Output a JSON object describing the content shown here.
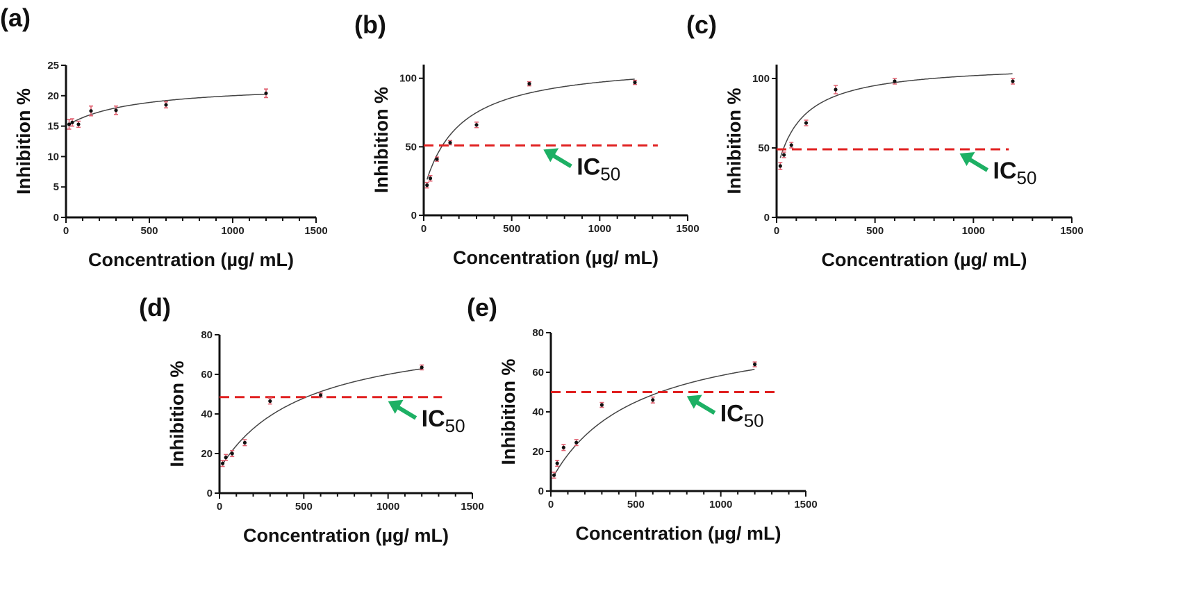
{
  "chart_data": [
    {
      "panel": "(a)",
      "type": "scatter",
      "xlabel": "Concentration (µg/ mL)",
      "ylabel": "Inhibition %",
      "xlim": [
        0,
        1500
      ],
      "ylim": [
        0,
        25
      ],
      "xticks": [
        0,
        500,
        1000,
        1500
      ],
      "yticks": [
        0,
        5,
        10,
        15,
        20,
        25
      ],
      "x": [
        18.75,
        37.5,
        75,
        150,
        300,
        600,
        1200
      ],
      "y": [
        15.3,
        15.6,
        15.3,
        17.5,
        17.6,
        18.5,
        20.4
      ],
      "err": [
        0.8,
        0.6,
        0.5,
        0.8,
        0.7,
        0.5,
        0.7
      ],
      "fit": {
        "y0": 15,
        "bmax": 7,
        "k": 400
      },
      "ic50": null
    },
    {
      "panel": "(b)",
      "type": "scatter",
      "xlabel": "Concentration (µg/ mL)",
      "ylabel": "Inhibition %",
      "xlim": [
        0,
        1500
      ],
      "ylim": [
        0,
        110
      ],
      "xticks": [
        0,
        500,
        1000,
        1500
      ],
      "yticks": [
        0,
        50,
        100
      ],
      "x": [
        18.75,
        37.5,
        75,
        150,
        300,
        600,
        1200
      ],
      "y": [
        22,
        27,
        41,
        53,
        66,
        96,
        97
      ],
      "err": [
        2,
        2,
        1.5,
        1.5,
        2,
        1.5,
        1.5
      ],
      "fit": {
        "y0": 18,
        "bmax": 95,
        "k": 200
      },
      "ic50": {
        "y": 51,
        "xend": 1330,
        "label": "IC",
        "sub": "50",
        "arrow_x": 680
      }
    },
    {
      "panel": "(c)",
      "type": "scatter",
      "xlabel": "Concentration (µg/ mL)",
      "ylabel": "Inhibition %",
      "xlim": [
        0,
        1500
      ],
      "ylim": [
        0,
        110
      ],
      "xticks": [
        0,
        500,
        1000,
        1500
      ],
      "yticks": [
        0,
        50,
        100
      ],
      "x": [
        18.75,
        37.5,
        75,
        150,
        300,
        600,
        1200
      ],
      "y": [
        37,
        45,
        52,
        68,
        92,
        98,
        98
      ],
      "err": [
        2.5,
        2,
        2,
        2,
        3,
        2,
        2
      ],
      "fit": {
        "y0": 33,
        "bmax": 78,
        "k": 130
      },
      "ic50": {
        "y": 49,
        "xend": 1180,
        "label": "IC",
        "sub": "50",
        "arrow_x": 930
      }
    },
    {
      "panel": "(d)",
      "type": "scatter",
      "xlabel": "Concentration (µg/ mL)",
      "ylabel": "Inhibition %",
      "xlim": [
        0,
        1500
      ],
      "ylim": [
        0,
        80
      ],
      "xticks": [
        0,
        500,
        1000,
        1500
      ],
      "yticks": [
        0,
        20,
        40,
        60,
        80
      ],
      "x": [
        18.75,
        37.5,
        75,
        150,
        300,
        600,
        1200
      ],
      "y": [
        15,
        18,
        20,
        25.5,
        46.5,
        49.5,
        63.5
      ],
      "err": [
        1.5,
        1.5,
        1.5,
        1.5,
        1.5,
        1,
        1.2
      ],
      "fit": {
        "y0": 12,
        "bmax": 72,
        "k": 500
      },
      "ic50": {
        "y": 48.5,
        "xend": 1320,
        "label": "IC",
        "sub": "50",
        "arrow_x": 1000
      }
    },
    {
      "panel": "(e)",
      "type": "scatter",
      "xlabel": "Concentration (µg/ mL)",
      "ylabel": "Inhibition %",
      "xlim": [
        0,
        1500
      ],
      "ylim": [
        0,
        80
      ],
      "xticks": [
        0,
        500,
        1000,
        1500
      ],
      "yticks": [
        0,
        20,
        40,
        60,
        80
      ],
      "x": [
        18.75,
        37.5,
        75,
        150,
        300,
        600,
        1200
      ],
      "y": [
        8,
        14,
        22,
        24.5,
        43.5,
        46,
        64
      ],
      "err": [
        1.5,
        1.5,
        1.5,
        1.5,
        1.2,
        1.5,
        1.2
      ],
      "fit": {
        "y0": 5,
        "bmax": 80,
        "k": 500
      },
      "ic50": {
        "y": 50,
        "xend": 1340,
        "label": "IC",
        "sub": "50",
        "arrow_x": 800
      }
    }
  ],
  "colors": {
    "points": "#111111",
    "error_bars": "#e06070",
    "fit": "#444444",
    "ic50_line": "#e02020",
    "arrow": "#1db064"
  }
}
